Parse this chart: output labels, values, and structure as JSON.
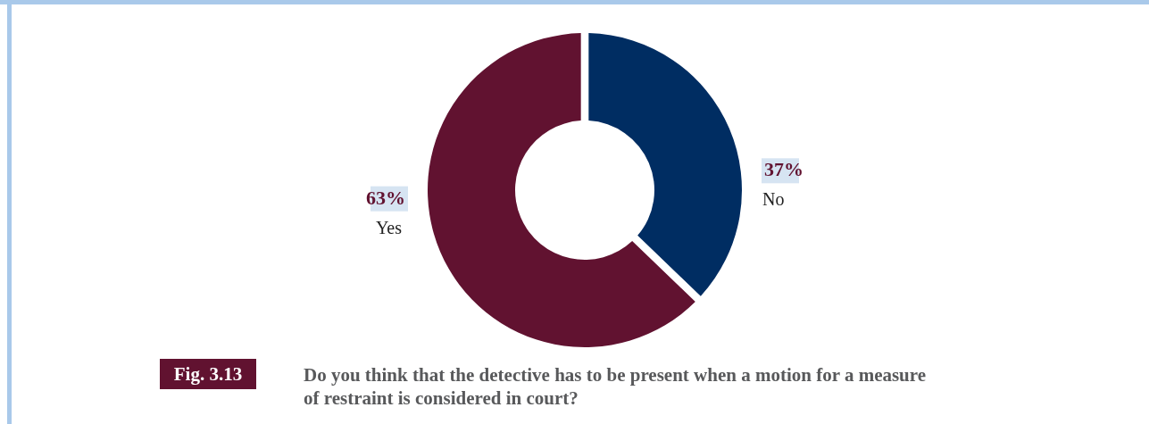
{
  "chart_data": {
    "type": "donut",
    "title": "Do you think that the detective has to be present when a motion for a measure of restraint is considered in court?",
    "annotations": [
      "Fig. 3.13"
    ],
    "categories": [
      "No",
      "Yes"
    ],
    "values": [
      37,
      63
    ],
    "value_labels": [
      "37%",
      "63%"
    ],
    "colors": [
      "#002d62",
      "#611230"
    ]
  }
}
